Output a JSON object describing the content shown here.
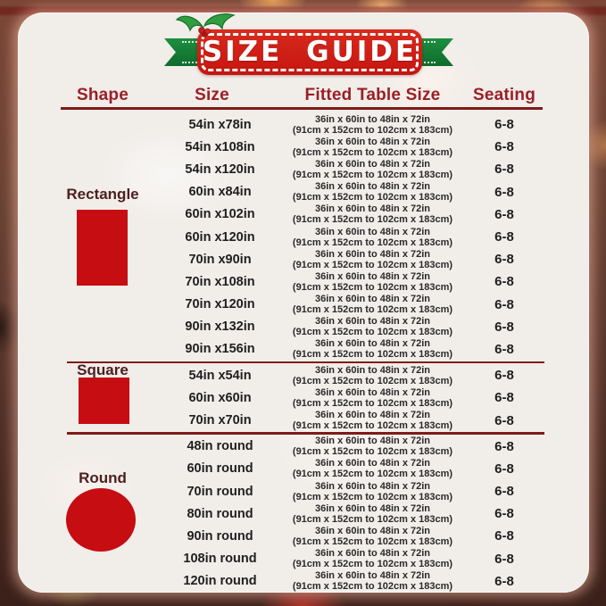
{
  "banner": {
    "title": "SIZE GUIDE"
  },
  "colors": {
    "badge_red": "#d02318",
    "ribbon_green": "#157a36",
    "header_red": "#9a1f26",
    "divider_red": "#7e1b1b",
    "section_label_maroon": "#4d2020",
    "shape_fill_red": "#c60d12",
    "panel_background": "#f1ede9"
  },
  "table": {
    "headers": [
      "Shape",
      "Size",
      "Fitted Table Size",
      "Seating"
    ],
    "fitted_line1": "36in x 60in to 48in x 72in",
    "fitted_line2": "(91cm x 152cm to 102cm x 183cm)",
    "seating": "6-8",
    "sections": [
      {
        "shape": "Rectangle",
        "sizes": [
          "54in x78in",
          "54in x108in",
          "54in x120in",
          "60in x84in",
          "60in x102in",
          "60in x120in",
          "70in x90in",
          "70in x108in",
          "70in x120in",
          "90in x132in",
          "90in x156in"
        ]
      },
      {
        "shape": "Square",
        "sizes": [
          "54in x54in",
          "60in x60in",
          "70in x70in"
        ]
      },
      {
        "shape": "Round",
        "sizes": [
          "48in round",
          "60in round",
          "70in round",
          "80in round",
          "90in round",
          "108in round",
          "120in round"
        ]
      }
    ]
  },
  "chart_data": {
    "type": "table",
    "title": "SIZE GUIDE",
    "columns": [
      "Shape",
      "Size",
      "Fitted Table Size",
      "Seating"
    ],
    "rows": [
      [
        "Rectangle",
        "54in x78in",
        "36in x 60in to 48in x 72in (91cm x 152cm to 102cm x 183cm)",
        "6-8"
      ],
      [
        "Rectangle",
        "54in x108in",
        "36in x 60in to 48in x 72in (91cm x 152cm to 102cm x 183cm)",
        "6-8"
      ],
      [
        "Rectangle",
        "54in x120in",
        "36in x 60in to 48in x 72in (91cm x 152cm to 102cm x 183cm)",
        "6-8"
      ],
      [
        "Rectangle",
        "60in x84in",
        "36in x 60in to 48in x 72in (91cm x 152cm to 102cm x 183cm)",
        "6-8"
      ],
      [
        "Rectangle",
        "60in x102in",
        "36in x 60in to 48in x 72in (91cm x 152cm to 102cm x 183cm)",
        "6-8"
      ],
      [
        "Rectangle",
        "60in x120in",
        "36in x 60in to 48in x 72in (91cm x 152cm to 102cm x 183cm)",
        "6-8"
      ],
      [
        "Rectangle",
        "70in x90in",
        "36in x 60in to 48in x 72in (91cm x 152cm to 102cm x 183cm)",
        "6-8"
      ],
      [
        "Rectangle",
        "70in x108in",
        "36in x 60in to 48in x 72in (91cm x 152cm to 102cm x 183cm)",
        "6-8"
      ],
      [
        "Rectangle",
        "70in x120in",
        "36in x 60in to 48in x 72in (91cm x 152cm to 102cm x 183cm)",
        "6-8"
      ],
      [
        "Rectangle",
        "90in x132in",
        "36in x 60in to 48in x 72in (91cm x 152cm to 102cm x 183cm)",
        "6-8"
      ],
      [
        "Rectangle",
        "90in x156in",
        "36in x 60in to 48in x 72in (91cm x 152cm to 102cm x 183cm)",
        "6-8"
      ],
      [
        "Square",
        "54in x54in",
        "36in x 60in to 48in x 72in (91cm x 152cm to 102cm x 183cm)",
        "6-8"
      ],
      [
        "Square",
        "60in x60in",
        "36in x 60in to 48in x 72in (91cm x 152cm to 102cm x 183cm)",
        "6-8"
      ],
      [
        "Square",
        "70in x70in",
        "36in x 60in to 48in x 72in (91cm x 152cm to 102cm x 183cm)",
        "6-8"
      ],
      [
        "Round",
        "48in round",
        "36in x 60in to 48in x 72in (91cm x 152cm to 102cm x 183cm)",
        "6-8"
      ],
      [
        "Round",
        "60in round",
        "36in x 60in to 48in x 72in (91cm x 152cm to 102cm x 183cm)",
        "6-8"
      ],
      [
        "Round",
        "70in round",
        "36in x 60in to 48in x 72in (91cm x 152cm to 102cm x 183cm)",
        "6-8"
      ],
      [
        "Round",
        "80in round",
        "36in x 60in to 48in x 72in (91cm x 152cm to 102cm x 183cm)",
        "6-8"
      ],
      [
        "Round",
        "90in round",
        "36in x 60in to 48in x 72in (91cm x 152cm to 102cm x 183cm)",
        "6-8"
      ],
      [
        "Round",
        "108in round",
        "36in x 60in to 48in x 72in (91cm x 152cm to 102cm x 183cm)",
        "6-8"
      ],
      [
        "Round",
        "120in round",
        "36in x 60in to 48in x 72in (91cm x 152cm to 102cm x 183cm)",
        "6-8"
      ]
    ]
  }
}
